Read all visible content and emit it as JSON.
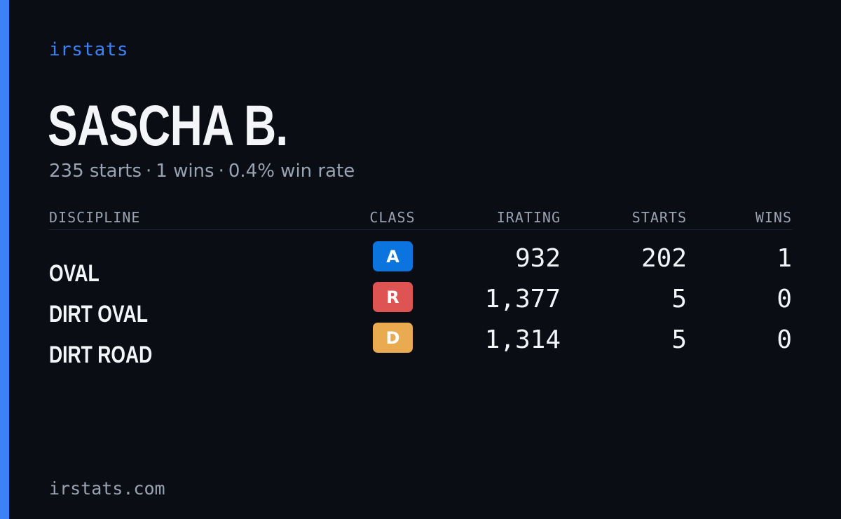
{
  "brand": "irstats",
  "driver": {
    "name": "SASCHA B.",
    "starts_text": "235 starts",
    "wins_text": "1 wins",
    "win_rate_text": "0.4% win rate",
    "separator": "·"
  },
  "table": {
    "headers": {
      "discipline": "DISCIPLINE",
      "class": "CLASS",
      "irating": "IRATING",
      "starts": "STARTS",
      "wins": "WINS"
    },
    "rows": [
      {
        "discipline": "OVAL",
        "class": "A",
        "class_color": "#0b74de",
        "irating": "932",
        "starts": "202",
        "wins": "1"
      },
      {
        "discipline": "DIRT OVAL",
        "class": "R",
        "class_color": "#dd5453",
        "irating": "1,377",
        "starts": "5",
        "wins": "0"
      },
      {
        "discipline": "DIRT ROAD",
        "class": "D",
        "class_color": "#eaaa4f",
        "irating": "1,314",
        "starts": "5",
        "wins": "0"
      }
    ]
  },
  "footer": {
    "url": "irstats.com"
  },
  "colors": {
    "background": "#0a0d14",
    "accent": "#3b82f6",
    "muted_text": "#9aa3b2",
    "primary_text": "#f4f5f8"
  }
}
